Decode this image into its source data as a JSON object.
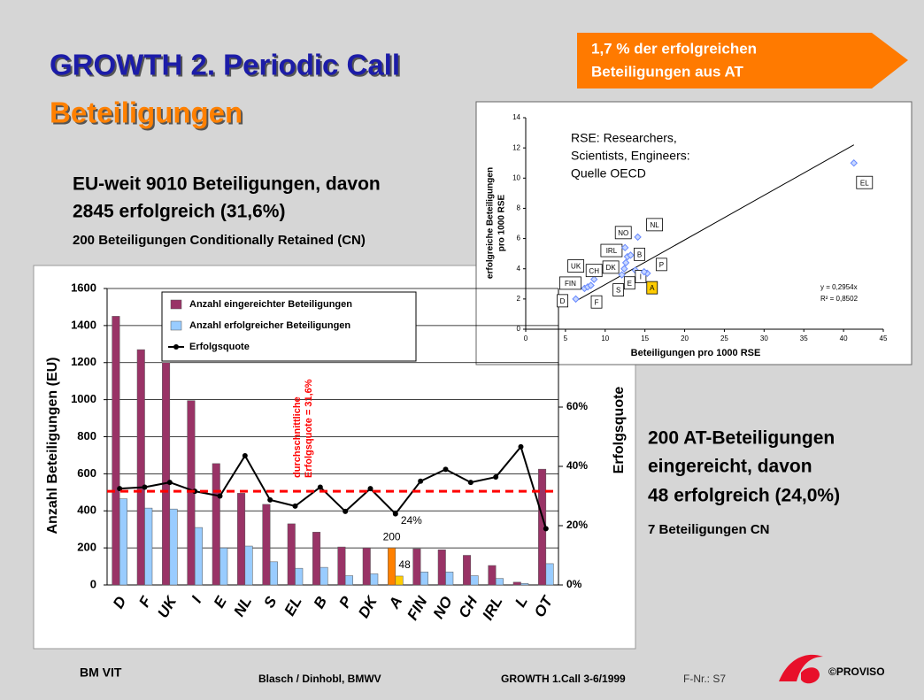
{
  "title": "GROWTH 2. Periodic Call",
  "subtitle": "Beteiligungen",
  "callout": [
    "1,7 % der erfolgreichen",
    "Beteiligungen aus AT"
  ],
  "eu_text": [
    "EU-weit 9010 Beteiligungen, davon",
    "2845 erfolgreich (31,6%)"
  ],
  "eu_note": "200 Beteiligungen Conditionally Retained (CN)",
  "at_text": [
    "200 AT-Beteiligungen",
    "eingereicht, davon",
    "48 erfolgreich (24,0%)"
  ],
  "at_note": "7 Beteiligungen CN",
  "footer": {
    "left": "BM VIT",
    "authors": "Blasch / Dinhobl, BMWV",
    "call": "GROWTH 1.Call 3-6/1999",
    "number": "F-Nr.: S7",
    "copyright": "©PROVISO"
  },
  "chart_data": [
    {
      "type": "bar",
      "categories": [
        "D",
        "F",
        "UK",
        "I",
        "E",
        "NL",
        "S",
        "EL",
        "B",
        "P",
        "DK",
        "A",
        "FIN",
        "NO",
        "CH",
        "IRL",
        "L",
        "OT"
      ],
      "series": [
        {
          "name": "Anzahl eingereichter Beteiligungen",
          "color": "#993366",
          "highlight_color": "#ff8000",
          "values": [
            1450,
            1270,
            1200,
            995,
            655,
            495,
            435,
            330,
            285,
            205,
            200,
            200,
            195,
            190,
            160,
            105,
            15,
            625
          ],
          "value_labels": [
            null,
            null,
            null,
            null,
            null,
            null,
            null,
            null,
            null,
            null,
            null,
            "200",
            null,
            null,
            null,
            null,
            null,
            null
          ]
        },
        {
          "name": "Anzahl erfolgreicher Beteiligungen",
          "color": "#99ccff",
          "highlight_color": "#ffcc00",
          "values": [
            465,
            415,
            410,
            310,
            200,
            210,
            125,
            90,
            95,
            50,
            60,
            48,
            70,
            70,
            50,
            35,
            8,
            115
          ],
          "value_labels": [
            null,
            null,
            null,
            null,
            null,
            null,
            null,
            null,
            null,
            null,
            null,
            "48",
            null,
            null,
            null,
            null,
            null,
            null
          ]
        },
        {
          "name": "Erfolgsquote",
          "type": "line",
          "axis": "y2",
          "color": "#000000",
          "values": [
            32.5,
            33,
            34.6,
            31.6,
            30,
            43.6,
            28.7,
            26.6,
            33,
            24.8,
            32.5,
            24,
            35,
            39,
            34.6,
            36.4,
            46.6,
            19
          ],
          "value_labels": [
            null,
            null,
            null,
            null,
            null,
            null,
            null,
            null,
            null,
            null,
            null,
            "24%",
            null,
            null,
            null,
            null,
            null,
            null
          ]
        }
      ],
      "highlight_category": "A",
      "ylabel": "Anzahl Beteiligungen (EU)",
      "y2label": "Erfolgsquote",
      "ylim": [
        0,
        1600
      ],
      "yticks": [
        0,
        200,
        400,
        600,
        800,
        1000,
        1200,
        1400,
        1600
      ],
      "y2lim": [
        0,
        100
      ],
      "y2ticks": [
        {
          "value": 0,
          "label": "0%"
        },
        {
          "value": 20,
          "label": "20%"
        },
        {
          "value": 40,
          "label": "40%"
        },
        {
          "value": 60,
          "label": "60%"
        }
      ],
      "grid": true,
      "legend": "top-left",
      "reference_line": {
        "value": 31.6,
        "axis": "y2",
        "color": "#ff0000",
        "label": [
          "durchschnittliche",
          "Erfolgsquote = 31,6%"
        ]
      }
    },
    {
      "type": "scatter",
      "point_labels": [
        "D",
        "FIN",
        "F",
        "UK",
        "CH",
        "S",
        "E",
        "DK",
        "IRL",
        "B",
        "NO",
        "NL",
        "I",
        "P",
        "A",
        "EL"
      ],
      "x": [
        6.3,
        7.4,
        7.8,
        8.2,
        8.6,
        12.1,
        12.4,
        12.6,
        12.8,
        13.2,
        12.5,
        14.1,
        13.8,
        15.3,
        14.9,
        41.3
      ],
      "values": [
        2.0,
        2.7,
        2.8,
        2.9,
        3.3,
        3.6,
        4.0,
        4.4,
        4.8,
        4.9,
        5.4,
        6.1,
        3.9,
        3.7,
        3.8,
        11.0
      ],
      "color": "#6688ff",
      "highlight_label": "A",
      "highlight_color": "#ffcc00",
      "xlabel": "Beteiligungen pro 1000 RSE",
      "ylabel": [
        "erfolgreiche Beteiligungen",
        "pro 1000 RSE"
      ],
      "xlim": [
        0,
        45
      ],
      "xticks": [
        0,
        5,
        10,
        15,
        20,
        25,
        30,
        35,
        40,
        45
      ],
      "ylim": [
        0,
        14
      ],
      "yticks": [
        0,
        2,
        4,
        6,
        8,
        10,
        12,
        14
      ],
      "annotation": [
        "RSE: Researchers,",
        "Scientists, Engineers:",
        "Quelle OECD"
      ],
      "trendline": {
        "slope": 0.2954,
        "equation": "y = 0,2954x",
        "r2_label": "R² = 0,8502"
      }
    }
  ]
}
